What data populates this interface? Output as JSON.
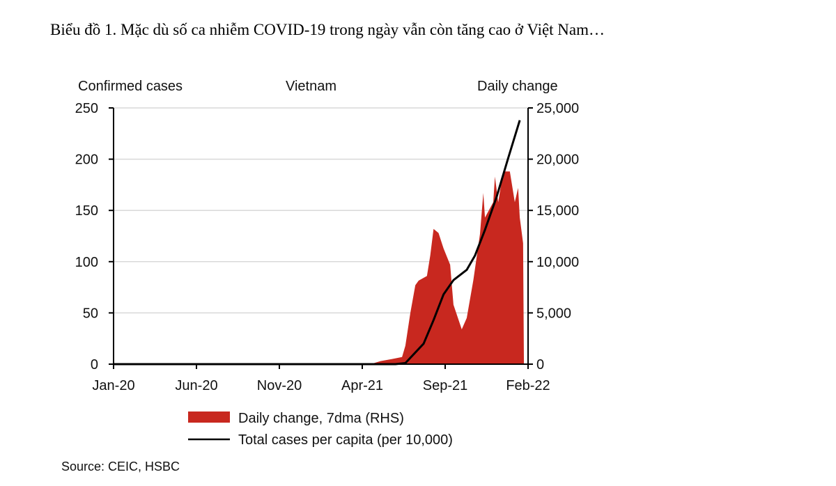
{
  "title": "Biểu đồ 1. Mặc dù số ca nhiễm COVID-19 trong ngày vẫn còn tăng cao ở Việt Nam…",
  "source": "Source: CEIC, HSBC",
  "chart_data": {
    "type": "area+line",
    "title": "Vietnam",
    "ylabel_left": "Confirmed cases",
    "ylabel_right": "Daily change",
    "ylim_left": [
      0,
      250
    ],
    "ylim_right": [
      0,
      25000
    ],
    "yticks_left": [
      "0",
      "50",
      "100",
      "150",
      "200",
      "250"
    ],
    "yticks_right": [
      "0",
      "5,000",
      "10,000",
      "15,000",
      "20,000",
      "25,000"
    ],
    "xlim": [
      0,
      25
    ],
    "xticks": [
      {
        "m": 0,
        "label": "Jan-20"
      },
      {
        "m": 5,
        "label": "Jun-20"
      },
      {
        "m": 10,
        "label": "Nov-20"
      },
      {
        "m": 15,
        "label": "Apr-21"
      },
      {
        "m": 20,
        "label": "Sep-21"
      },
      {
        "m": 25,
        "label": "Feb-22"
      }
    ],
    "grid": true,
    "legend_position": "bottom",
    "colors": {
      "area": "#c8281f",
      "line": "#000000",
      "grid": "#d9d9d9"
    },
    "series": [
      {
        "name": "Daily change, 7dma (RHS)",
        "axis": "right",
        "kind": "area",
        "x": [
          15.5,
          16.1,
          16.8,
          17.4,
          17.6,
          17.9,
          18.2,
          18.4,
          18.9,
          19.1,
          19.3,
          19.6,
          19.9,
          20.3,
          20.5,
          21.0,
          21.3,
          21.7,
          22.1,
          22.3,
          22.4,
          22.9,
          23.0,
          23.2,
          23.5,
          23.9,
          24.2,
          24.4,
          24.5,
          24.7,
          24.75
        ],
        "y": [
          0,
          300,
          500,
          700,
          1800,
          5000,
          7700,
          8150,
          8600,
          10600,
          13200,
          12800,
          11300,
          9700,
          5800,
          3400,
          4500,
          8200,
          12700,
          16700,
          14300,
          15800,
          18300,
          15800,
          18800,
          18800,
          15800,
          17200,
          14300,
          11800,
          0
        ]
      },
      {
        "name": "Total cases per capita (per 10,000)",
        "axis": "left",
        "kind": "line",
        "x": [
          17.0,
          17.6,
          18.7,
          19.3,
          19.9,
          20.5,
          21.3,
          21.8,
          22.4,
          23.1,
          23.8,
          24.5
        ],
        "y": [
          0,
          1,
          20,
          43,
          68,
          82,
          92,
          106,
          131,
          163,
          201,
          238
        ]
      }
    ]
  }
}
